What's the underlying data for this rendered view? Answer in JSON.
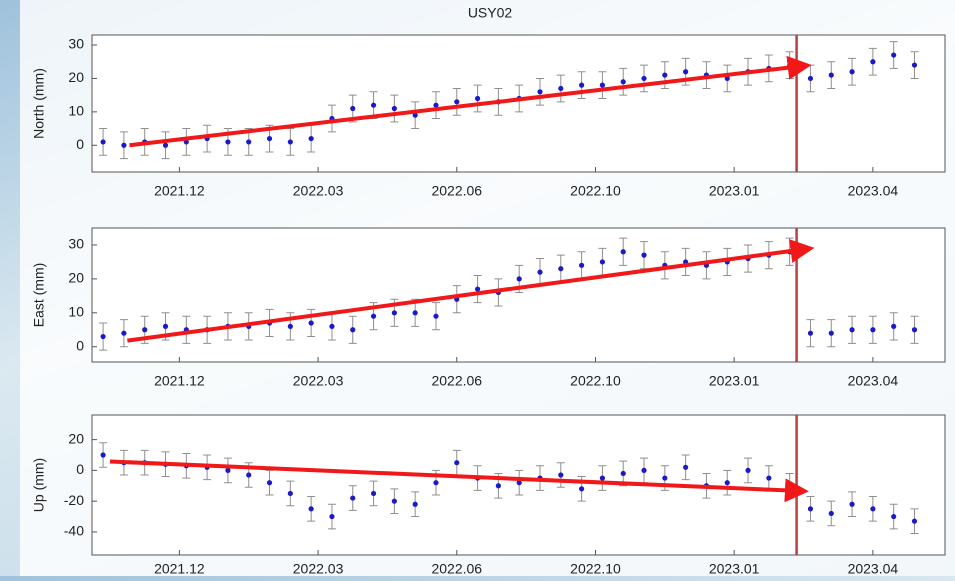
{
  "chart_data": [
    {
      "type": "scatter",
      "title": "USY02",
      "ylabel": "North (mm)",
      "x": [
        -0.55,
        -0.4,
        -0.25,
        -0.1,
        0.05,
        0.2,
        0.35,
        0.5,
        0.65,
        0.8,
        0.95,
        1.1,
        1.25,
        1.4,
        1.55,
        1.7,
        1.85,
        2.0,
        2.15,
        2.3,
        2.45,
        2.6,
        2.75,
        2.9,
        3.05,
        3.2,
        3.35,
        3.5,
        3.65,
        3.8,
        3.95,
        4.1,
        4.25,
        4.4,
        4.55,
        4.7,
        4.85,
        5.0,
        5.15,
        5.3
      ],
      "series": [
        {
          "color": "#1a1acc",
          "values": [
            1,
            0,
            1,
            0,
            1,
            2,
            1,
            1,
            2,
            1,
            2,
            8,
            11,
            12,
            11,
            9,
            12,
            13,
            14,
            13,
            14,
            16,
            17,
            18,
            18,
            19,
            20,
            21,
            22,
            21,
            20,
            22,
            23,
            24,
            20,
            21,
            22,
            25,
            27,
            24
          ]
        }
      ],
      "error": 4,
      "error_color": "#8f8f8f",
      "xlim": [
        -0.63,
        5.52
      ],
      "xticks": [
        {
          "value": 0,
          "label": "2021.12"
        },
        {
          "value": 1,
          "label": "2022.03"
        },
        {
          "value": 2,
          "label": "2022.06"
        },
        {
          "value": 3,
          "label": "2022.10"
        },
        {
          "value": 4,
          "label": "2023.01"
        },
        {
          "value": 5,
          "label": "2023.04"
        }
      ],
      "ylim": [
        -8,
        33
      ],
      "yticks": [
        0,
        10,
        20,
        30
      ],
      "break_x": 4.45,
      "break_color": "#b94040",
      "trend": {
        "color": "#f01818",
        "x": [
          -0.36,
          4.53
        ],
        "y": [
          0,
          23.9
        ]
      }
    },
    {
      "type": "scatter",
      "ylabel": "East (mm)",
      "x": [
        -0.55,
        -0.4,
        -0.25,
        -0.1,
        0.05,
        0.2,
        0.35,
        0.5,
        0.65,
        0.8,
        0.95,
        1.1,
        1.25,
        1.4,
        1.55,
        1.7,
        1.85,
        2.0,
        2.15,
        2.3,
        2.45,
        2.6,
        2.75,
        2.9,
        3.05,
        3.2,
        3.35,
        3.5,
        3.65,
        3.8,
        3.95,
        4.1,
        4.25,
        4.4,
        4.55,
        4.7,
        4.85,
        5.0,
        5.15,
        5.3
      ],
      "series": [
        {
          "color": "#1a1acc",
          "values": [
            3,
            4,
            5,
            6,
            5,
            5,
            6,
            6,
            7,
            6,
            7,
            6,
            5,
            9,
            10,
            10,
            9,
            14,
            17,
            16,
            20,
            22,
            23,
            24,
            25,
            28,
            27,
            24,
            25,
            24,
            25,
            26,
            27,
            28,
            4,
            4,
            5,
            5,
            6,
            5
          ]
        }
      ],
      "error": 4,
      "error_color": "#8f8f8f",
      "xlim": [
        -0.63,
        5.52
      ],
      "xticks": [
        {
          "value": 0,
          "label": "2021.12"
        },
        {
          "value": 1,
          "label": "2022.03"
        },
        {
          "value": 2,
          "label": "2022.06"
        },
        {
          "value": 3,
          "label": "2022.10"
        },
        {
          "value": 4,
          "label": "2023.01"
        },
        {
          "value": 5,
          "label": "2023.04"
        }
      ],
      "ylim": [
        -4.5,
        35
      ],
      "yticks": [
        0,
        10,
        20,
        30
      ],
      "break_x": 4.45,
      "break_color": "#b94040",
      "trend": {
        "color": "#f01818",
        "x": [
          -0.375,
          4.55
        ],
        "y": [
          1.8,
          29
        ]
      }
    },
    {
      "type": "scatter",
      "ylabel": "Up (mm)",
      "x": [
        -0.55,
        -0.4,
        -0.25,
        -0.1,
        0.05,
        0.2,
        0.35,
        0.5,
        0.65,
        0.8,
        0.95,
        1.1,
        1.25,
        1.4,
        1.55,
        1.7,
        1.85,
        2.0,
        2.15,
        2.3,
        2.45,
        2.6,
        2.75,
        2.9,
        3.05,
        3.2,
        3.35,
        3.5,
        3.65,
        3.8,
        3.95,
        4.1,
        4.25,
        4.4,
        4.55,
        4.7,
        4.85,
        5.0,
        5.15,
        5.3
      ],
      "series": [
        {
          "color": "#1a1acc",
          "values": [
            10,
            5,
            5,
            4,
            3,
            2,
            0,
            -3,
            -8,
            -15,
            -25,
            -30,
            -18,
            -15,
            -20,
            -22,
            -8,
            5,
            -5,
            -10,
            -8,
            -5,
            -3,
            -12,
            -5,
            -2,
            0,
            -5,
            2,
            -10,
            -8,
            0,
            -5,
            -10,
            -25,
            -28,
            -22,
            -25,
            -30,
            -33
          ]
        }
      ],
      "error": 8,
      "error_color": "#8f8f8f",
      "xlim": [
        -0.63,
        5.52
      ],
      "xticks": [
        {
          "value": 0,
          "label": "2021.12"
        },
        {
          "value": 1,
          "label": "2022.03"
        },
        {
          "value": 2,
          "label": "2022.06"
        },
        {
          "value": 3,
          "label": "2022.10"
        },
        {
          "value": 4,
          "label": "2023.01"
        },
        {
          "value": 5,
          "label": "2023.04"
        }
      ],
      "ylim": [
        -55,
        36
      ],
      "yticks": [
        -40,
        -20,
        0,
        20
      ],
      "break_x": 4.45,
      "break_color": "#b94040",
      "trend": {
        "color": "#f01818",
        "x": [
          -0.5,
          4.51
        ],
        "y": [
          5.8,
          -13.5
        ]
      }
    }
  ]
}
